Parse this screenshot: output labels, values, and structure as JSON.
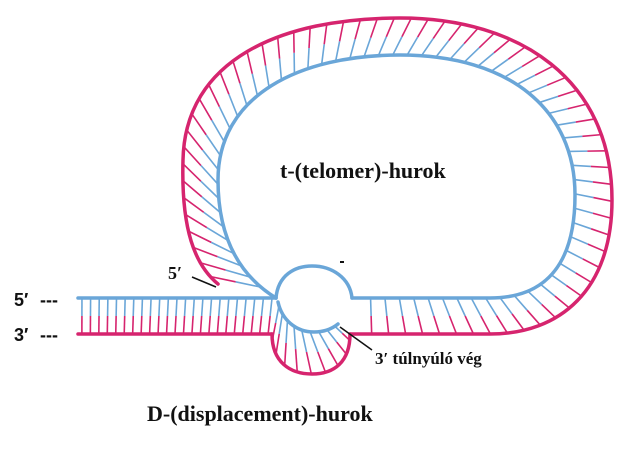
{
  "labels": {
    "t_loop": "t-(telomer)-hurok",
    "d_loop": "D-(displacement)-hurok",
    "five_prime_end": "5′",
    "three_prime_end": "3′",
    "five_prime_inner": "5′",
    "overhang": "3′ túlnyúló vég",
    "dashes": "---"
  },
  "colors": {
    "strand_blue": "#6aa6d8",
    "strand_magenta": "#d6246e",
    "text": "#111111",
    "background": "#ffffff"
  }
}
